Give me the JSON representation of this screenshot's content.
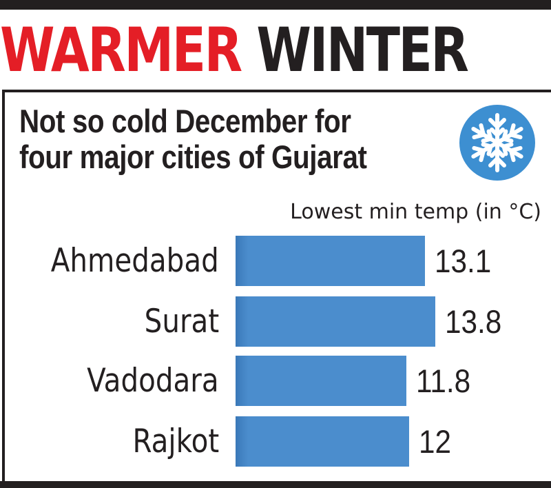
{
  "headline": {
    "part1": "WARMER",
    "part2": "WINTER",
    "part1_color": "#e41e26",
    "part2_color": "#231f20"
  },
  "subtitle": {
    "line1": "Not so cold December for",
    "line2": "four major cities of Gujarat"
  },
  "icon": {
    "name": "snowflake-icon",
    "color": "#3d8fd1"
  },
  "unit_label": "Lowest min temp (in °C)",
  "bar_color": "#4b8dcd",
  "chart_data": {
    "type": "bar",
    "orientation": "horizontal",
    "title": "WARMER WINTER",
    "subtitle": "Not so cold December for four major cities of Gujarat",
    "xlabel": "Lowest min temp (in °C)",
    "ylabel": "",
    "categories": [
      "Ahmedabad",
      "Surat",
      "Vadodara",
      "Rajkot"
    ],
    "values": [
      13.1,
      13.8,
      11.8,
      12
    ],
    "value_labels": [
      "13.1",
      "13.8",
      "11.8",
      "12"
    ],
    "grid": false,
    "legend": "none",
    "bar_color": "#4b8dcd"
  }
}
